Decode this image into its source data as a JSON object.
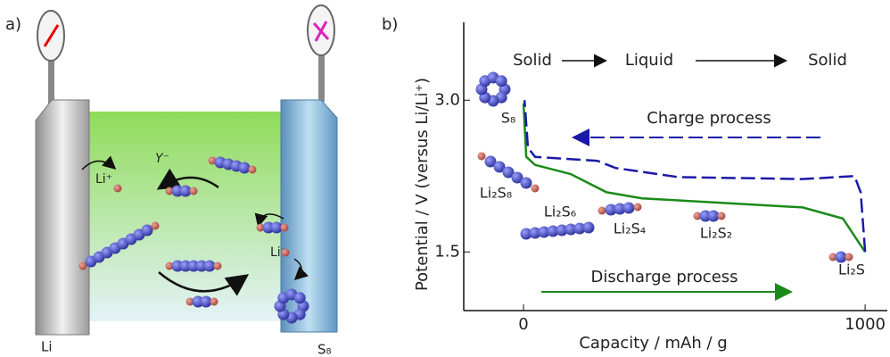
{
  "panel_a": {
    "label": "a)",
    "li": "Li",
    "s8": "S₈",
    "ion_left": "Li⁺",
    "ion_right": "Li⁺",
    "anion": "Y⁻"
  },
  "chart_data": {
    "type": "line",
    "panel_label": "b)",
    "x_label": "Capacity  /  mAh / g",
    "y_label": "Potential  /  V (versus Li/Li⁺)",
    "xlim": [
      -175,
      1065
    ],
    "ylim": [
      0.92,
      3.77
    ],
    "xticks": [
      0,
      1000
    ],
    "yticks": [
      1.5,
      {
        "value": 3,
        "label": "3.0"
      }
    ],
    "series": [
      {
        "color": "#1a8a1a",
        "dash": false,
        "x": [
          0,
          8,
          34,
          138,
          243,
          347,
          556,
          817,
          935,
          1000
        ],
        "values": [
          2.97,
          2.44,
          2.36,
          2.27,
          2.09,
          2.03,
          1.99,
          1.94,
          1.83,
          1.5
        ]
      },
      {
        "color": "#1a1aa6",
        "dash": true,
        "x": [
          1000,
          987,
          969,
          817,
          452,
          269,
          217,
          34,
          13,
          3
        ],
        "values": [
          1.5,
          2.09,
          2.25,
          2.22,
          2.24,
          2.33,
          2.4,
          2.44,
          2.53,
          3.0
        ]
      }
    ],
    "phases": [
      "Solid",
      "Liquid",
      "Solid"
    ],
    "process_labels": [
      "Charge process",
      "Discharge process"
    ],
    "species": [
      "S₈",
      "Li₂S₈",
      "Li₂S₆",
      "Li₂S₄",
      "Li₂S₂",
      "Li₂S"
    ]
  }
}
